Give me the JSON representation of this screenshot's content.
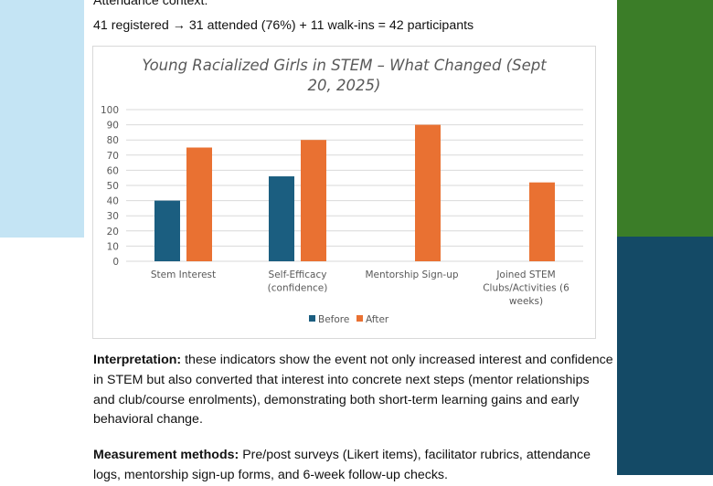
{
  "document": {
    "attendance_heading": "Attendance context:",
    "attendance_line": "41 registered → 31 attended (76%) + 11 walk-ins = 42 participants",
    "interpretation_label": "Interpretation:",
    "interpretation_text": " these indicators show the event not only increased interest and confidence in STEM but also converted that interest into concrete next steps (mentor relationships and club/course enrolments), demonstrating both short-term learning gains and early behavioral change.",
    "methods_label": "Measurement methods:",
    "methods_text": " Pre/post surveys (Likert items), facilitator rubrics, attendance logs, mentorship sign-up forms, and 6-week follow-up checks."
  },
  "colors": {
    "before": "#1b5e80",
    "after": "#e97132",
    "left_panel": "#c4e4f4",
    "right_panel_top": "#3b7d28",
    "right_panel_bottom": "#144a66"
  },
  "chart_data": {
    "type": "bar",
    "title": "Young Racialized Girls in STEM – What Changed (Sept 20, 2025)",
    "title_lines": [
      "Young Racialized Girls in STEM – What Changed (Sept",
      "20, 2025)"
    ],
    "categories": [
      "Stem Interest",
      "Self-Efficacy (confidence)",
      "Mentorship Sign-up",
      "Joined STEM Clubs/Activities (6 weeks)"
    ],
    "category_lines": [
      [
        "Stem Interest"
      ],
      [
        "Self-Efficacy",
        "(confidence)"
      ],
      [
        "Mentorship Sign-up"
      ],
      [
        "Joined STEM",
        "Clubs/Activities (6",
        "weeks)"
      ]
    ],
    "series": [
      {
        "name": "Before",
        "values": [
          40,
          56,
          null,
          null
        ]
      },
      {
        "name": "After",
        "values": [
          75,
          80,
          90,
          52
        ]
      }
    ],
    "xlabel": "",
    "ylabel": "",
    "ylim": [
      0,
      100
    ],
    "yticks": [
      0,
      10,
      20,
      30,
      40,
      50,
      60,
      70,
      80,
      90,
      100
    ],
    "grid": true,
    "legend": "bottom"
  }
}
